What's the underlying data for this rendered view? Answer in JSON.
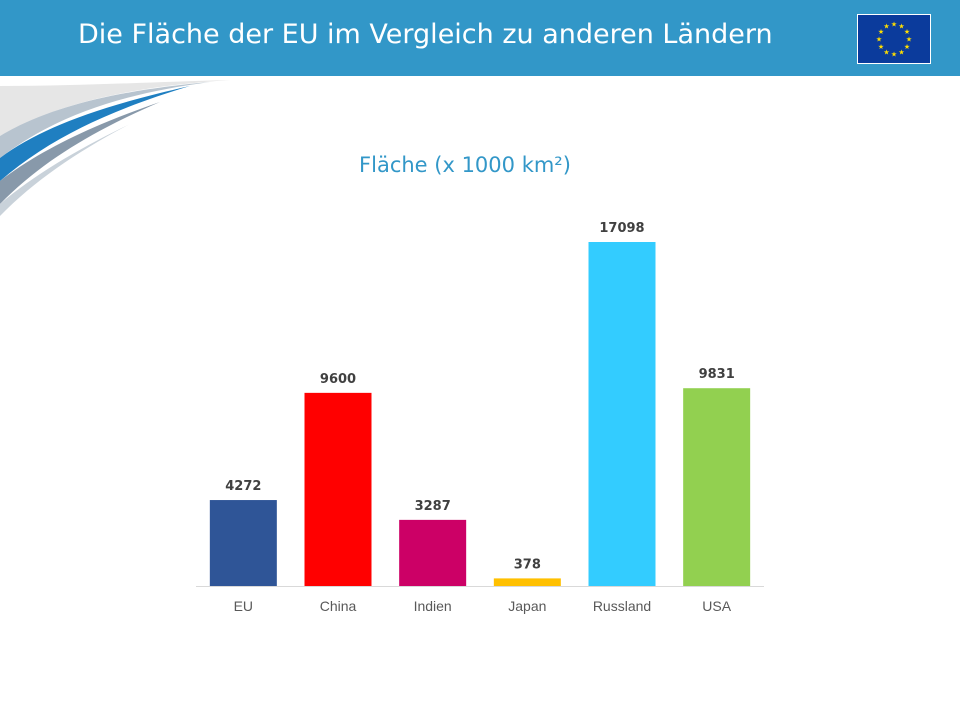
{
  "header": {
    "title": "Die Fläche der EU im Vergleich zu anderen Ländern"
  },
  "flag": {
    "icon": "eu-flag-icon",
    "background": "#0b3b9c",
    "star_color": "#ffde00",
    "stars": 12
  },
  "theme": {
    "accent": "#3297c8"
  },
  "chart_data": {
    "type": "bar",
    "title": "Fläche (x 1000 km²)",
    "categories": [
      "EU",
      "China",
      "Indien",
      "Japan",
      "Russland",
      "USA"
    ],
    "values": [
      4272,
      9600,
      3287,
      378,
      17098,
      9831
    ],
    "colors": [
      "#2f5597",
      "#ff0000",
      "#cc0066",
      "#ffc000",
      "#33ccff",
      "#92d050"
    ],
    "data_labels": true,
    "ylim": [
      0,
      17098
    ],
    "grid": false,
    "legend": "none"
  }
}
